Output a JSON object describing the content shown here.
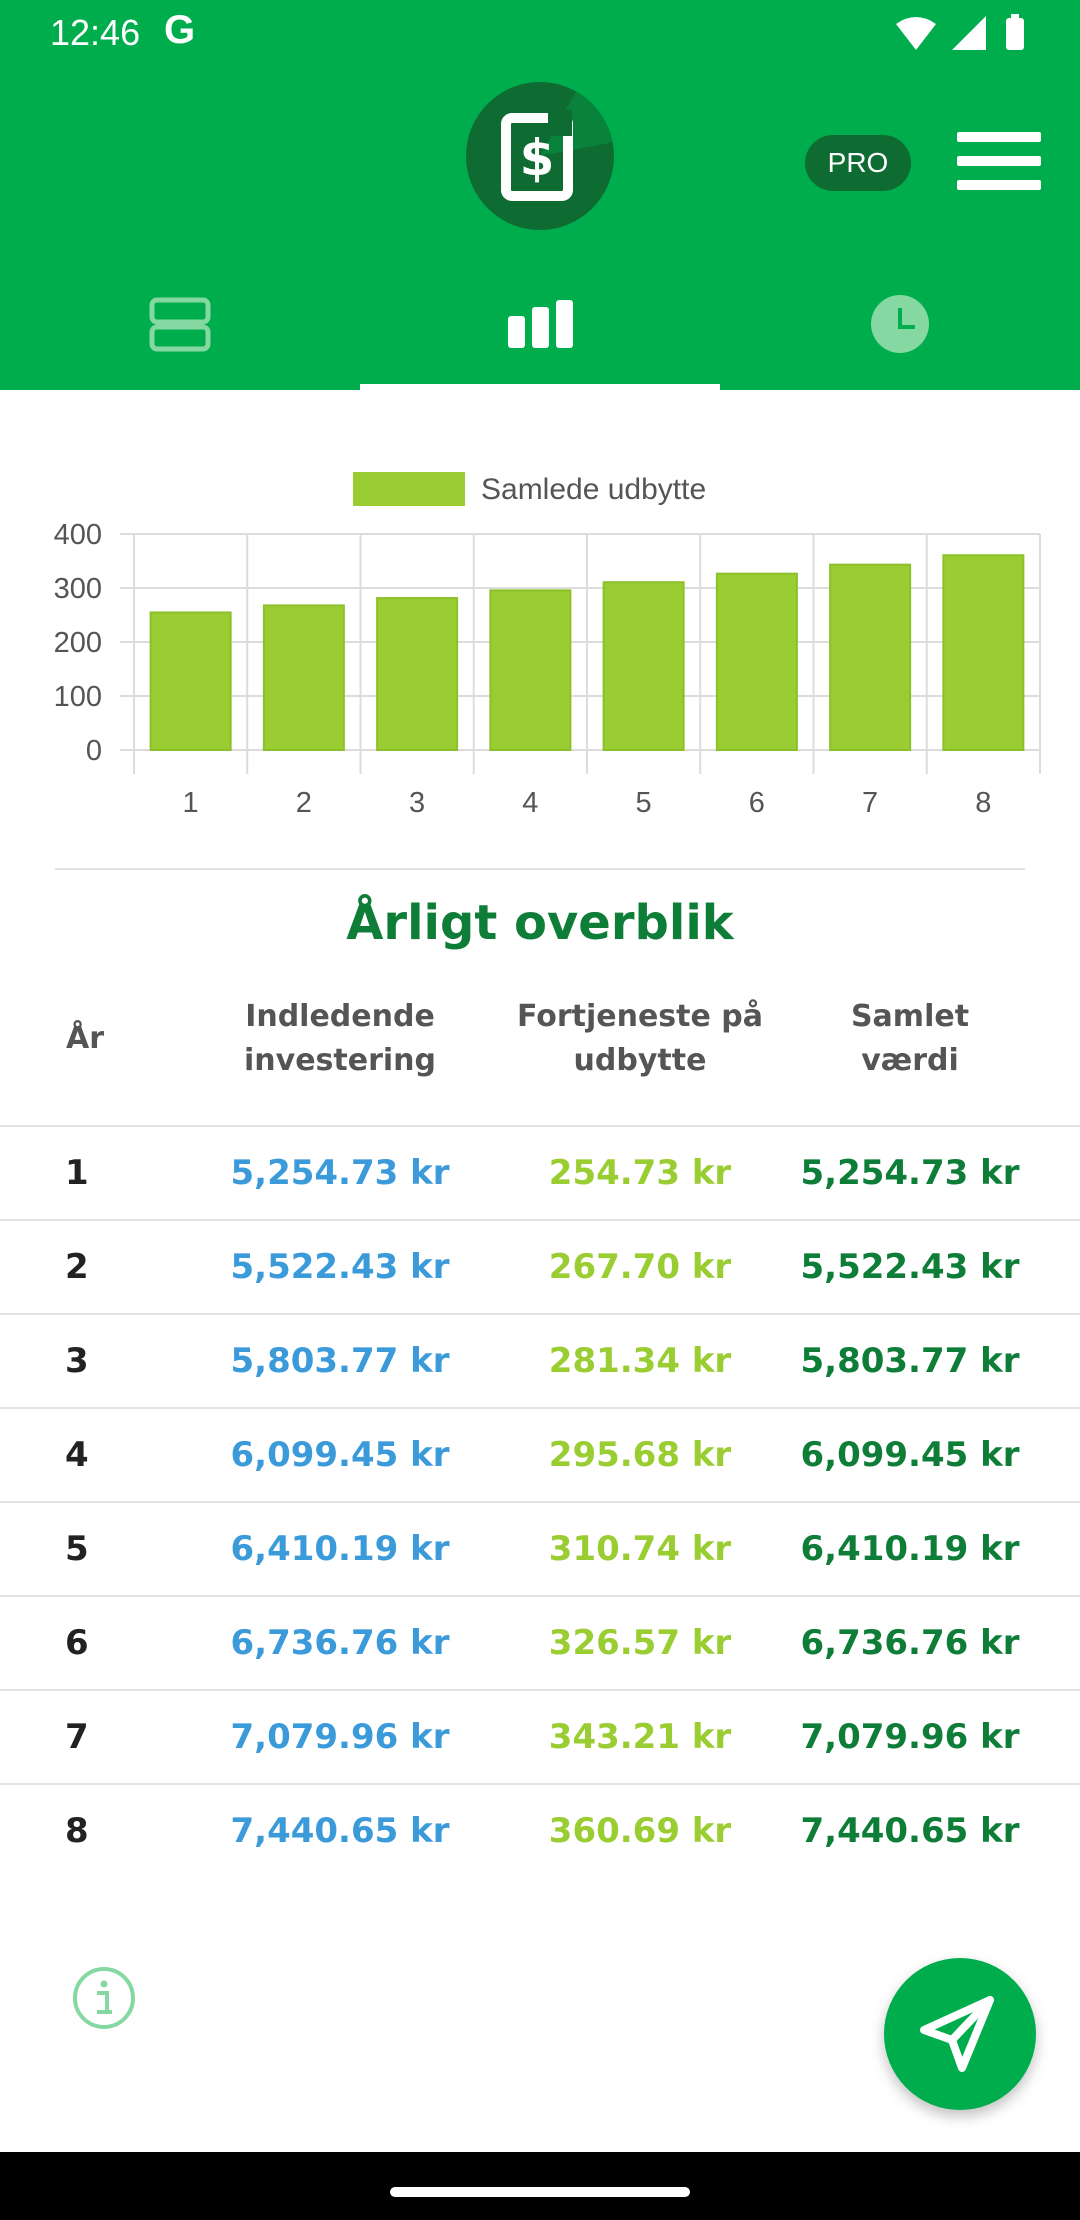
{
  "status_bar": {
    "time": "12:46",
    "g_icon": "G",
    "icons": [
      "wifi-icon",
      "signal-icon",
      "battery-icon"
    ]
  },
  "header": {
    "logo_icon": "dollar-logo-icon",
    "pro_badge": "PRO",
    "menu_icon": "hamburger-menu-icon",
    "tabs": [
      {
        "icon": "list-view-icon",
        "selected": false
      },
      {
        "icon": "bar-chart-icon",
        "selected": true
      },
      {
        "icon": "clock-icon",
        "selected": false
      }
    ]
  },
  "chart_data": {
    "type": "bar",
    "categories": [
      "1",
      "2",
      "3",
      "4",
      "5",
      "6",
      "7",
      "8"
    ],
    "series": [
      {
        "name": "Samlede udbytte",
        "values": [
          254.73,
          267.7,
          281.34,
          295.68,
          310.74,
          326.57,
          343.21,
          360.69
        ]
      }
    ],
    "ylim": [
      0,
      400
    ],
    "yticks": [
      "0",
      "100",
      "200",
      "300",
      "400"
    ],
    "grid": true,
    "legend": "top-center",
    "colors": {
      "bar": "#9acd32",
      "bar_edge": "#8cc02a",
      "grid": "#dcdcdc",
      "axis_text": "#555555"
    }
  },
  "table": {
    "title": "Årligt overblik",
    "headers": {
      "year": "År",
      "initial": [
        "Indledende",
        "investering"
      ],
      "profit": [
        "Fortjeneste på",
        "udbytte"
      ],
      "total": [
        "Samlet",
        "værdi"
      ]
    },
    "rows": [
      {
        "year": "1",
        "initial": "5,254.73 kr",
        "profit": "254.73 kr",
        "total": "5,254.73 kr"
      },
      {
        "year": "2",
        "initial": "5,522.43 kr",
        "profit": "267.70 kr",
        "total": "5,522.43 kr"
      },
      {
        "year": "3",
        "initial": "5,803.77 kr",
        "profit": "281.34 kr",
        "total": "5,803.77 kr"
      },
      {
        "year": "4",
        "initial": "6,099.45 kr",
        "profit": "295.68 kr",
        "total": "6,099.45 kr"
      },
      {
        "year": "5",
        "initial": "6,410.19 kr",
        "profit": "310.74 kr",
        "total": "6,410.19 kr"
      },
      {
        "year": "6",
        "initial": "6,736.76 kr",
        "profit": "326.57 kr",
        "total": "6,736.76 kr"
      },
      {
        "year": "7",
        "initial": "7,079.96 kr",
        "profit": "343.21 kr",
        "total": "7,079.96 kr"
      },
      {
        "year": "8",
        "initial": "7,440.65 kr",
        "profit": "360.69 kr",
        "total": "7,440.65 kr"
      }
    ]
  },
  "bottom": {
    "info_icon": "info-icon",
    "fab_icon": "send-icon"
  },
  "colors": {
    "primary": "#00ad4c",
    "primary_dark": "#0e6c33",
    "title_green": "#0e7d37",
    "blue": "#3b9ad9",
    "lime": "#9acd32"
  }
}
